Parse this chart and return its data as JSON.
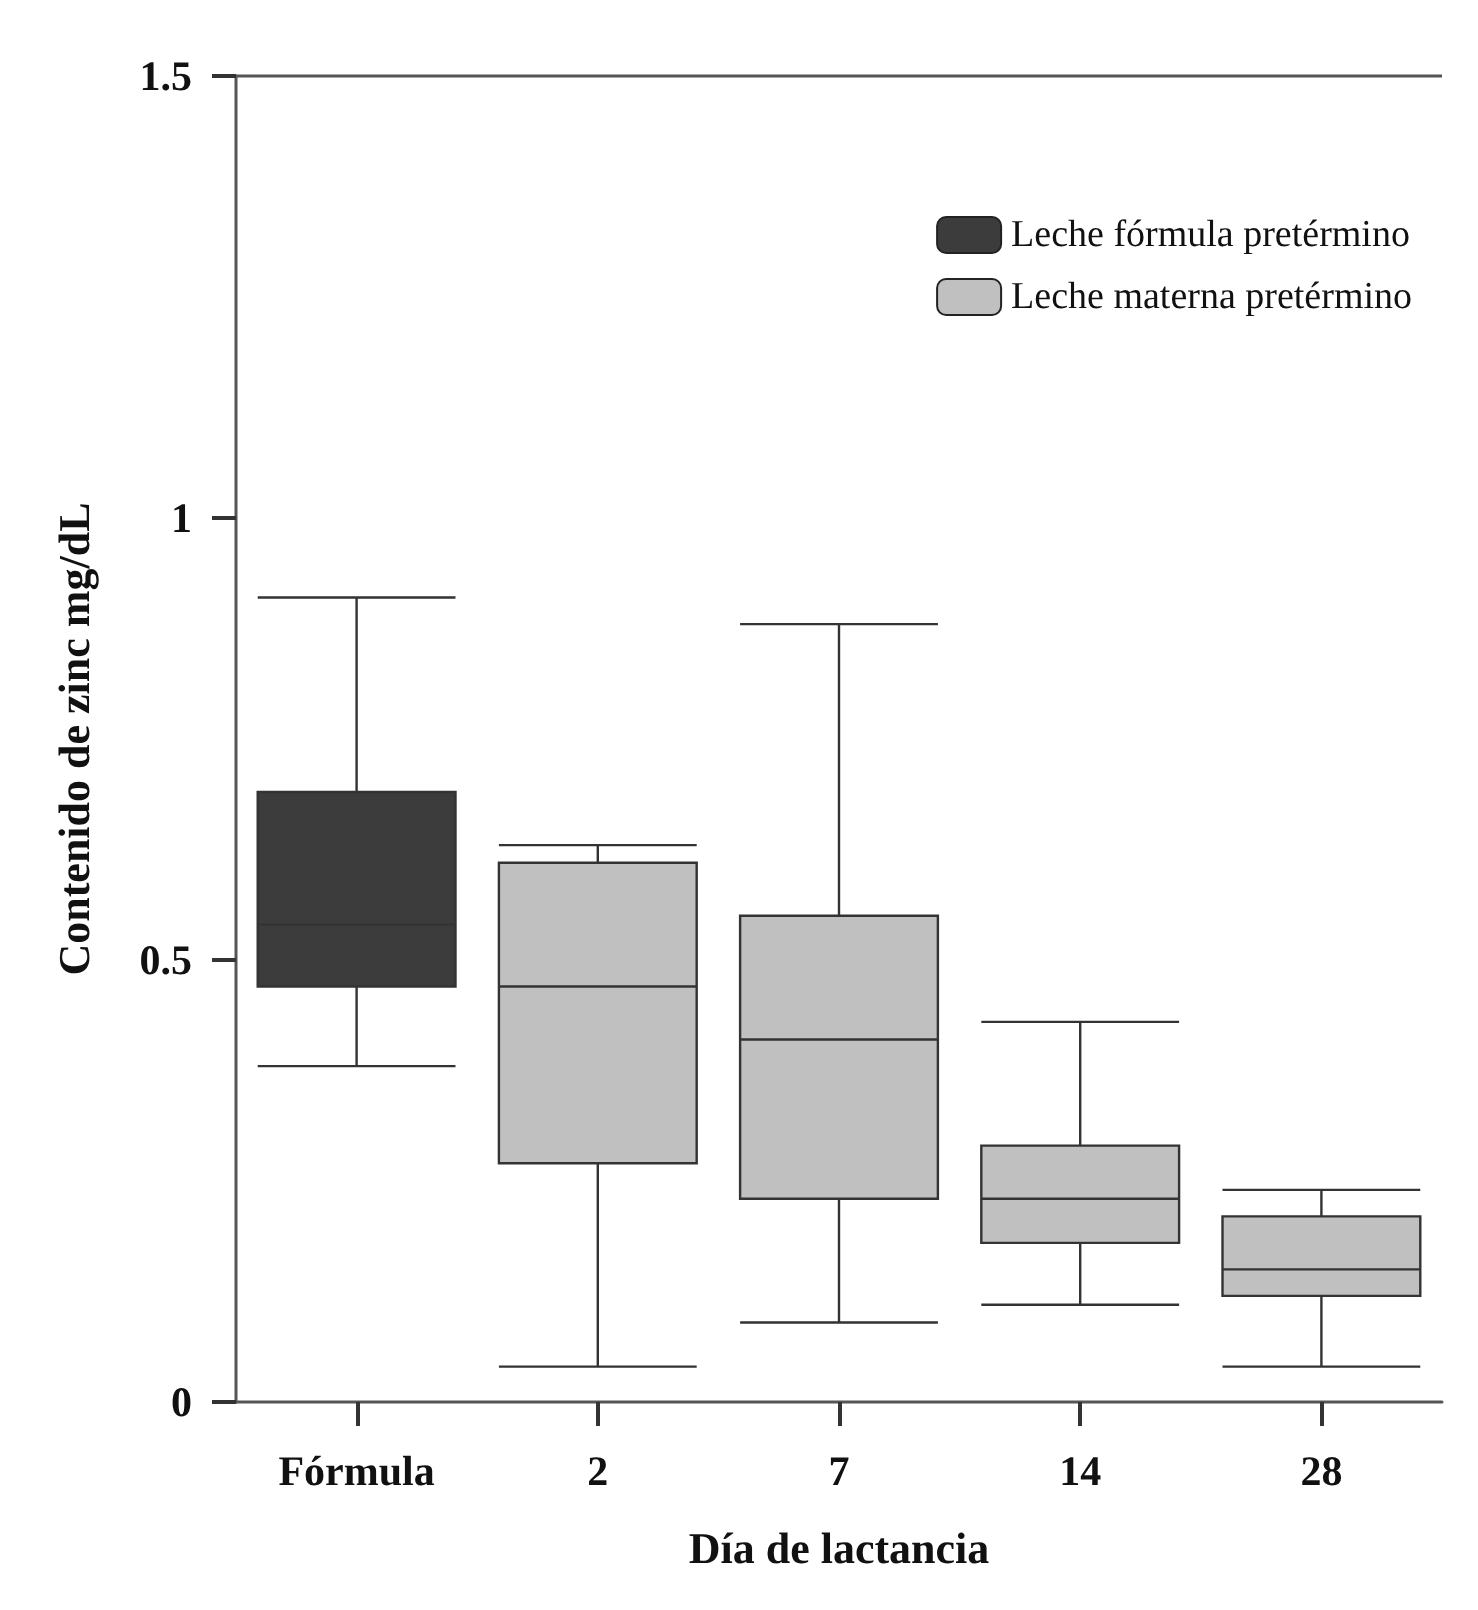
{
  "chart_data": {
    "type": "box",
    "xlabel": "Día de lactancia",
    "ylabel": "Contenido de zinc mg/dL",
    "categories": [
      "Fórmula",
      "2",
      "7",
      "14",
      "28"
    ],
    "ylim": [
      0,
      1.5
    ],
    "yticks": [
      0,
      0.5,
      1,
      1.5
    ],
    "grid": false,
    "legend": "top right",
    "series": [
      {
        "name": "Leche fórmula pretérmino",
        "color": "#3c3c3c",
        "boxes": [
          {
            "low": 0.38,
            "q1": 0.47,
            "median": 0.54,
            "q3": 0.69,
            "high": 0.91
          },
          null,
          null,
          null,
          null
        ]
      },
      {
        "name": "Leche materna pretérmino",
        "color": "#c0c0c0",
        "boxes": [
          null,
          {
            "low": 0.04,
            "q1": 0.27,
            "median": 0.47,
            "q3": 0.61,
            "high": 0.63
          },
          {
            "low": 0.09,
            "q1": 0.23,
            "median": 0.41,
            "q3": 0.55,
            "high": 0.88
          },
          {
            "low": 0.11,
            "q1": 0.18,
            "median": 0.23,
            "q3": 0.29,
            "high": 0.43
          },
          {
            "low": 0.04,
            "q1": 0.12,
            "median": 0.15,
            "q3": 0.21,
            "high": 0.24
          }
        ]
      }
    ]
  }
}
